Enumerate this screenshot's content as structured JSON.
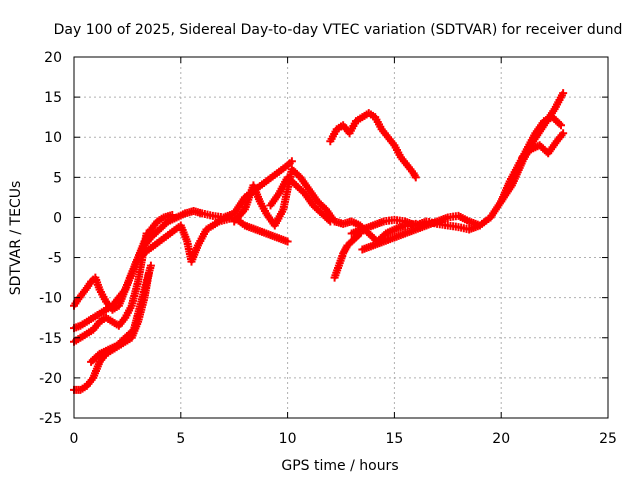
{
  "chart_data": {
    "type": "scatter",
    "title": "Day 100 of 2025, Sidereal Day-to-day VTEC variation (SDTVAR) for receiver dund",
    "xlabel": "GPS time / hours",
    "ylabel": "SDTVAR / TECUs",
    "xlim": [
      0,
      25
    ],
    "ylim": [
      -25,
      20
    ],
    "xticks": [
      0,
      5,
      10,
      15,
      20,
      25
    ],
    "yticks": [
      -25,
      -20,
      -15,
      -10,
      -5,
      0,
      5,
      10,
      15,
      20
    ],
    "grid": true,
    "marker": "+",
    "color": "#ff0000",
    "series": [
      {
        "x": [
          0.0,
          0.2,
          0.4,
          0.6,
          0.8,
          1.0,
          1.2,
          1.5,
          1.8,
          2.1,
          2.4,
          2.7,
          3.0,
          3.3,
          3.6,
          4.0,
          4.4,
          4.8,
          5.2,
          5.6,
          6.0,
          6.5,
          7.0,
          7.5,
          8.0,
          8.5,
          9.0,
          9.5,
          10.0,
          10.2
        ],
        "y": [
          -11.0,
          -10.2,
          -9.5,
          -8.8,
          -8.0,
          -7.5,
          -9.0,
          -10.5,
          -11.5,
          -11.0,
          -9.0,
          -7.0,
          -5.0,
          -3.5,
          -2.5,
          -1.5,
          -0.5,
          0.0,
          0.5,
          0.8,
          0.5,
          0.2,
          0.0,
          0.5,
          2.5,
          3.5,
          4.5,
          5.5,
          6.5,
          7.0
        ]
      },
      {
        "x": [
          0.0,
          0.3,
          0.6,
          0.9,
          1.2,
          1.5,
          1.8,
          2.1,
          2.4,
          2.7,
          3.0,
          3.3,
          3.6,
          3.9,
          4.2,
          4.6
        ],
        "y": [
          -13.8,
          -13.5,
          -13.0,
          -12.5,
          -12.0,
          -11.5,
          -11.0,
          -10.0,
          -9.0,
          -7.0,
          -5.0,
          -3.0,
          -1.5,
          -0.5,
          0.0,
          0.3
        ]
      },
      {
        "x": [
          0.0,
          0.3,
          0.6,
          0.9,
          1.2,
          1.5,
          1.8,
          2.1,
          2.4,
          2.7,
          3.0,
          3.2,
          3.4
        ],
        "y": [
          -15.5,
          -15.0,
          -14.5,
          -14.0,
          -13.0,
          -12.5,
          -13.0,
          -13.5,
          -12.5,
          -11.0,
          -8.0,
          -5.0,
          -2.0
        ]
      },
      {
        "x": [
          0.0,
          0.3,
          0.6,
          0.9,
          1.2,
          1.5,
          1.8,
          2.1,
          2.4,
          2.7,
          3.0,
          3.3,
          3.5
        ],
        "y": [
          -21.5,
          -21.5,
          -21.0,
          -20.0,
          -18.0,
          -17.0,
          -16.5,
          -16.0,
          -15.5,
          -15.0,
          -13.0,
          -10.0,
          -7.0
        ]
      },
      {
        "x": [
          0.8,
          1.2,
          1.6,
          2.0,
          2.4,
          2.8,
          3.0,
          3.3,
          3.6
        ],
        "y": [
          -18.0,
          -17.0,
          -16.5,
          -16.0,
          -15.0,
          -14.0,
          -12.0,
          -9.0,
          -6.0
        ]
      },
      {
        "x": [
          3.0,
          3.5,
          4.0,
          4.5,
          5.0,
          5.3,
          5.5,
          5.8,
          6.2,
          6.8,
          7.5,
          8.0,
          8.5,
          9.0,
          9.5,
          10.0
        ],
        "y": [
          -5.0,
          -4.0,
          -3.0,
          -2.0,
          -1.0,
          -3.0,
          -5.5,
          -3.5,
          -1.5,
          -0.5,
          0.0,
          -1.0,
          -1.5,
          -2.0,
          -2.5,
          -3.0
        ]
      },
      {
        "x": [
          7.5,
          8.0,
          8.4,
          8.7,
          9.0,
          9.4,
          9.8,
          10.2,
          10.6,
          11.0,
          11.4,
          11.8,
          12.2,
          12.6,
          13.0,
          13.4,
          13.8,
          14.2,
          14.6,
          15.0,
          15.5,
          16.0
        ],
        "y": [
          -0.5,
          1.0,
          4.0,
          2.0,
          0.5,
          -1.0,
          1.0,
          6.0,
          5.0,
          3.5,
          2.0,
          1.0,
          -0.5,
          -0.8,
          -0.5,
          -1.0,
          -2.0,
          -3.0,
          -2.0,
          -1.5,
          -1.0,
          -0.8
        ]
      },
      {
        "x": [
          9.2,
          9.6,
          10.0,
          10.4,
          10.8,
          11.2,
          11.6,
          12.0
        ],
        "y": [
          1.5,
          3.0,
          5.0,
          4.0,
          3.0,
          1.5,
          0.5,
          -0.5
        ]
      },
      {
        "x": [
          12.2,
          12.4,
          12.6,
          12.8,
          13.0,
          13.2,
          13.4
        ],
        "y": [
          -7.5,
          -6.0,
          -4.5,
          -3.5,
          -3.0,
          -2.5,
          -2.0
        ]
      },
      {
        "x": [
          12.0,
          12.3,
          12.6,
          12.9,
          13.2,
          13.5,
          13.8,
          14.1,
          14.4,
          14.7,
          15.0,
          15.3,
          15.6,
          15.9,
          16.0
        ],
        "y": [
          9.5,
          11.0,
          11.5,
          10.5,
          12.0,
          12.5,
          13.0,
          12.5,
          11.0,
          10.0,
          9.0,
          7.5,
          6.5,
          5.5,
          5.0
        ]
      },
      {
        "x": [
          13.0,
          13.5,
          14.0,
          14.5,
          15.0,
          15.5,
          16.0,
          16.5,
          17.0,
          17.5,
          18.0,
          18.5,
          19.0,
          19.5,
          20.0,
          20.5,
          21.0,
          21.5,
          22.0,
          22.5,
          22.9
        ],
        "y": [
          -2.0,
          -1.5,
          -1.0,
          -0.5,
          -0.3,
          -0.5,
          -1.0,
          -0.5,
          -0.8,
          -1.0,
          -1.2,
          -1.5,
          -1.0,
          0.0,
          2.0,
          4.0,
          7.0,
          9.5,
          11.5,
          13.5,
          15.5
        ]
      },
      {
        "x": [
          13.5,
          14.0,
          14.5,
          15.0,
          15.5,
          16.0,
          16.5,
          17.0,
          17.5,
          18.0,
          18.5,
          19.0
        ],
        "y": [
          -4.0,
          -3.5,
          -3.0,
          -2.5,
          -2.0,
          -1.5,
          -1.0,
          -0.5,
          0.0,
          0.2,
          -0.5,
          -1.0
        ]
      },
      {
        "x": [
          20.0,
          20.4,
          20.8,
          21.2,
          21.6,
          22.0,
          22.4,
          22.8
        ],
        "y": [
          2.0,
          4.5,
          6.5,
          8.5,
          10.5,
          12.0,
          12.5,
          11.5
        ]
      },
      {
        "x": [
          21.0,
          21.4,
          21.8,
          22.2,
          22.6,
          22.9
        ],
        "y": [
          7.5,
          8.5,
          9.0,
          8.0,
          9.5,
          10.5
        ]
      }
    ]
  }
}
